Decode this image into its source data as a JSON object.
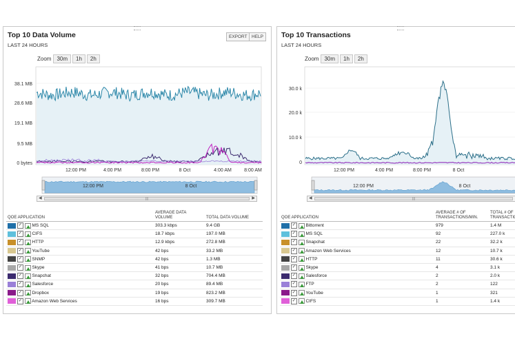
{
  "colors": {
    "series_main": "#2a86a8",
    "fill_main": "#d8eaf2",
    "purple_dark": "#3b2a6e",
    "magenta": "#c020c0",
    "navbar_fill": "#8fbde0"
  },
  "panel1": {
    "title": "Top 10 Data Volume",
    "subtitle": "LAST 24 HOURS",
    "export": "EXPORT",
    "help": "HELP",
    "zoom_label": "Zoom",
    "zoom_buttons": [
      "30m",
      "1h",
      "2h"
    ],
    "y_ticks": [
      "38.1 MB",
      "28.6 MB",
      "19.1 MB",
      "9.5 MB",
      "0 bytes"
    ],
    "x_ticks": [
      "12:00 PM",
      "4:00 PM",
      "8:00 PM",
      "8 Oct",
      "4:00 AM",
      "8:00 AM"
    ],
    "nav_labels": [
      "12:00 PM",
      "8 Oct"
    ],
    "headers": [
      "QOE APPLICATION",
      "AVERAGE DATA VOLUME",
      "TOTAL DATA VOLUME"
    ],
    "rows": [
      {
        "name": "MS SQL",
        "avg": "303.3 kbps",
        "total": "9.4 GB",
        "color": "#1f6fa8"
      },
      {
        "name": "CIFS",
        "avg": "18.7 kbps",
        "total": "197.0 MB",
        "color": "#5fc0dc"
      },
      {
        "name": "HTTP",
        "avg": "12.9 kbps",
        "total": "272.8 MB",
        "color": "#c8902a"
      },
      {
        "name": "YouTube",
        "avg": "42 bps",
        "total": "33.2 MB",
        "color": "#d8c890"
      },
      {
        "name": "SNMP",
        "avg": "42 bps",
        "total": "1.3 MB",
        "color": "#444444"
      },
      {
        "name": "Skype",
        "avg": "41 bps",
        "total": "10.7 MB",
        "color": "#a8a8a8"
      },
      {
        "name": "Snapchat",
        "avg": "32 bps",
        "total": "704.4 MB",
        "color": "#3b2a6e"
      },
      {
        "name": "Salesforce",
        "avg": "20 bps",
        "total": "89.4 MB",
        "color": "#9a80d8"
      },
      {
        "name": "Dropbox",
        "avg": "19 bps",
        "total": "823.2 MB",
        "color": "#8a1a8a"
      },
      {
        "name": "Amazon Web Services",
        "avg": "16 bps",
        "total": "309.7 MB",
        "color": "#e060d8"
      }
    ]
  },
  "panel2": {
    "title": "Top 10 Transactions",
    "subtitle": "LAST 24 HOURS",
    "zoom_label": "Zoom",
    "zoom_buttons": [
      "30m",
      "1h",
      "2h"
    ],
    "y_ticks": [
      "30.0 k",
      "20.0 k",
      "10.0 k",
      "0"
    ],
    "x_ticks": [
      "12:00 PM",
      "4:00 PM",
      "8:00 PM",
      "8 Oct"
    ],
    "nav_labels": [
      "12:00 PM",
      "8 Oct"
    ],
    "headers": [
      "QOE APPLICATION",
      "AVERAGE # OF TRANSACTIONS/MIN.",
      "TOTAL # OF TRANSACTIONS"
    ],
    "rows": [
      {
        "name": "Bittorrent",
        "avg": "979",
        "total": "1.4 M",
        "color": "#1f6fa8"
      },
      {
        "name": "MS SQL",
        "avg": "92",
        "total": "227.0 k",
        "color": "#5fc0dc"
      },
      {
        "name": "Snapchat",
        "avg": "22",
        "total": "32.2 k",
        "color": "#c8902a"
      },
      {
        "name": "Amazon Web Services",
        "avg": "12",
        "total": "10.7 k",
        "color": "#d8c890"
      },
      {
        "name": "HTTP",
        "avg": "11",
        "total": "30.6 k",
        "color": "#444444"
      },
      {
        "name": "Skype",
        "avg": "4",
        "total": "3.1 k",
        "color": "#a8a8a8"
      },
      {
        "name": "Salesforce",
        "avg": "2",
        "total": "2.0 k",
        "color": "#3b2a6e"
      },
      {
        "name": "FTP",
        "avg": "2",
        "total": "122",
        "color": "#9a80d8"
      },
      {
        "name": "YouTube",
        "avg": "1",
        "total": "321",
        "color": "#8a1a8a"
      },
      {
        "name": "CIFS",
        "avg": "1",
        "total": "1.4 k",
        "color": "#e060d8"
      }
    ]
  }
}
